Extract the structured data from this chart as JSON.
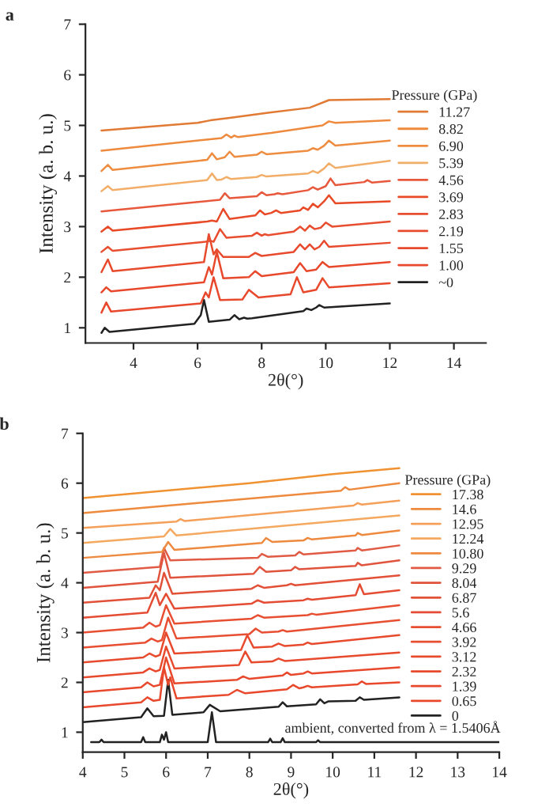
{
  "chart_data": [
    {
      "type": "line",
      "title": "a",
      "xlabel": "2θ(°)",
      "ylabel": "Intensity (a. b. u.)",
      "legend_title": "Pressure (GPa)",
      "legend": "right",
      "grid": false,
      "xlim": [
        2.5,
        15
      ],
      "xticks": [
        4,
        6,
        8,
        10,
        12,
        14
      ],
      "ylim": [
        0.7,
        7
      ],
      "yticks": [
        1,
        2,
        3,
        4,
        5,
        6,
        7
      ],
      "series": [
        {
          "name": "~0",
          "color": "#222222",
          "x": [
            3.0,
            3.1,
            3.25,
            5.9,
            6.1,
            6.2,
            6.35,
            7.0,
            7.15,
            7.3,
            7.45,
            7.55,
            7.7,
            9.3,
            9.4,
            9.55,
            9.7,
            9.8,
            9.95,
            12
          ],
          "values": [
            0.9,
            1.0,
            0.92,
            1.08,
            1.25,
            1.55,
            1.12,
            1.16,
            1.25,
            1.17,
            1.2,
            1.18,
            1.19,
            1.33,
            1.38,
            1.35,
            1.4,
            1.45,
            1.4,
            1.48
          ]
        },
        {
          "name": "1.00",
          "color": "#e8482c",
          "x": [
            3.0,
            3.15,
            3.3,
            6.1,
            6.25,
            6.35,
            6.5,
            6.7,
            7.4,
            7.6,
            7.9,
            8.9,
            9.1,
            9.3,
            9.7,
            9.9,
            10.1,
            12
          ],
          "values": [
            1.3,
            1.5,
            1.32,
            1.48,
            1.7,
            1.6,
            2.0,
            1.55,
            1.56,
            1.75,
            1.6,
            1.66,
            2.0,
            1.7,
            1.75,
            1.98,
            1.8,
            1.88
          ]
        },
        {
          "name": "1.55",
          "color": "#e8482c",
          "x": [
            3.0,
            3.15,
            3.3,
            6.2,
            6.35,
            6.45,
            6.6,
            6.8,
            7.6,
            7.8,
            8.0,
            9.0,
            9.2,
            9.4,
            9.7,
            9.9,
            10.1,
            12
          ],
          "values": [
            1.7,
            1.8,
            1.72,
            1.9,
            2.2,
            2.05,
            2.5,
            1.98,
            2.0,
            2.12,
            2.02,
            2.1,
            2.28,
            2.12,
            2.15,
            2.3,
            2.2,
            2.3
          ]
        },
        {
          "name": "2.19",
          "color": "#e84a2e",
          "x": [
            3.0,
            3.2,
            3.35,
            6.2,
            6.35,
            6.5,
            6.6,
            6.8,
            7.6,
            7.8,
            8.0,
            9.0,
            9.2,
            9.35,
            9.5,
            9.65,
            9.8,
            9.95,
            10.1,
            12
          ],
          "values": [
            2.1,
            2.35,
            2.12,
            2.3,
            2.85,
            2.45,
            2.55,
            2.4,
            2.4,
            2.48,
            2.42,
            2.5,
            2.65,
            2.55,
            2.65,
            2.55,
            2.6,
            2.72,
            2.6,
            2.68
          ]
        },
        {
          "name": "2.83",
          "color": "#e84e30",
          "x": [
            3.0,
            3.2,
            3.35,
            6.25,
            6.4,
            6.5,
            6.7,
            6.9,
            7.7,
            7.85,
            8.0,
            8.1,
            8.2,
            9.0,
            9.2,
            9.35,
            9.5,
            9.65,
            9.85,
            10.0,
            10.2,
            12
          ],
          "values": [
            2.5,
            2.6,
            2.52,
            2.7,
            2.72,
            2.7,
            2.95,
            2.78,
            2.82,
            2.88,
            2.82,
            2.85,
            2.83,
            2.9,
            3.0,
            2.92,
            3.02,
            2.95,
            2.98,
            3.08,
            3.0,
            3.1
          ]
        },
        {
          "name": "3.69",
          "color": "#e84a28",
          "x": [
            3.0,
            3.2,
            3.35,
            6.3,
            6.45,
            6.6,
            6.8,
            7.0,
            7.8,
            7.95,
            8.1,
            8.3,
            8.45,
            8.6,
            9.2,
            9.3,
            9.45,
            9.6,
            9.75,
            9.95,
            10.1,
            10.3,
            12
          ],
          "values": [
            2.9,
            3.0,
            2.92,
            3.1,
            3.12,
            3.1,
            3.35,
            3.15,
            3.22,
            3.32,
            3.24,
            3.27,
            3.32,
            3.27,
            3.32,
            3.38,
            3.33,
            3.45,
            3.38,
            3.5,
            3.62,
            3.46,
            3.5
          ]
        },
        {
          "name": "4.56",
          "color": "#e8583c",
          "x": [
            3.0,
            6.7,
            6.85,
            7.0,
            7.85,
            8.0,
            8.15,
            8.4,
            8.5,
            8.65,
            9.45,
            9.6,
            9.75,
            10.0,
            10.15,
            10.3,
            11.2,
            11.3,
            11.45,
            12
          ],
          "values": [
            3.3,
            3.53,
            3.66,
            3.56,
            3.6,
            3.68,
            3.62,
            3.64,
            3.66,
            3.64,
            3.72,
            3.78,
            3.73,
            3.8,
            3.95,
            3.82,
            3.88,
            3.92,
            3.87,
            3.9
          ]
        },
        {
          "name": "5.39",
          "color": "#f2ae68",
          "x": [
            3.0,
            3.2,
            3.35,
            6.3,
            6.45,
            6.6,
            6.75,
            6.9,
            7.05,
            7.85,
            8.0,
            8.15,
            9.45,
            9.6,
            9.75,
            9.95,
            10.1,
            10.3,
            12
          ],
          "values": [
            3.7,
            3.8,
            3.72,
            3.92,
            4.05,
            3.92,
            3.93,
            3.98,
            3.94,
            3.98,
            4.02,
            3.99,
            4.05,
            4.1,
            4.06,
            4.15,
            4.25,
            4.16,
            4.3
          ]
        },
        {
          "name": "6.90",
          "color": "#ee8c40",
          "x": [
            3.0,
            3.2,
            3.35,
            6.3,
            6.45,
            6.6,
            6.85,
            7.0,
            7.15,
            7.85,
            8.0,
            8.15,
            9.45,
            9.6,
            9.75,
            9.95,
            10.1,
            10.3,
            12
          ],
          "values": [
            4.1,
            4.22,
            4.12,
            4.32,
            4.45,
            4.33,
            4.37,
            4.48,
            4.38,
            4.42,
            4.48,
            4.43,
            4.5,
            4.55,
            4.52,
            4.6,
            4.7,
            4.6,
            4.7
          ]
        },
        {
          "name": "8.82",
          "color": "#ee8a3e",
          "x": [
            3.0,
            6.75,
            6.9,
            7.05,
            7.15,
            7.25,
            8.3,
            9.9,
            10.1,
            10.3,
            12
          ],
          "values": [
            4.5,
            4.75,
            4.82,
            4.76,
            4.8,
            4.77,
            4.85,
            5.0,
            5.08,
            5.05,
            5.1
          ]
        },
        {
          "name": "11.27",
          "color": "#e07a34",
          "x": [
            3.0,
            6.0,
            6.4,
            7.0,
            8.2,
            9.5,
            10.1,
            12
          ],
          "values": [
            4.9,
            5.05,
            5.1,
            5.15,
            5.25,
            5.35,
            5.5,
            5.52
          ]
        }
      ]
    },
    {
      "type": "line",
      "title": "b",
      "xlabel": "2θ(°)",
      "ylabel": "Intensity (a. b. u.)",
      "legend_title": "Pressure (GPa)",
      "legend": "right",
      "grid": false,
      "xlim": [
        4,
        14
      ],
      "xticks": [
        4,
        5,
        6,
        7,
        8,
        9,
        10,
        11,
        12,
        13,
        14
      ],
      "ylim": [
        0.6,
        7
      ],
      "yticks": [
        1,
        2,
        3,
        4,
        5,
        6,
        7
      ],
      "annotations": [
        {
          "text": "ambient, converted from λ = 1.5406Å",
          "x": 8.85,
          "y": 0.93
        }
      ],
      "series": [
        {
          "color": "#222222",
          "x": [
            4.2,
            4.4,
            4.45,
            4.5,
            5.4,
            5.45,
            5.5,
            5.85,
            5.9,
            5.95,
            6.0,
            6.05,
            7.0,
            7.1,
            7.2,
            8.45,
            8.5,
            8.55,
            8.75,
            8.8,
            8.85,
            9.6,
            9.65,
            9.7,
            14.0
          ],
          "values": [
            0.8,
            0.8,
            0.85,
            0.8,
            0.8,
            0.9,
            0.8,
            0.8,
            0.95,
            0.85,
            1.0,
            0.8,
            0.8,
            1.4,
            0.8,
            0.8,
            0.87,
            0.8,
            0.8,
            0.88,
            0.8,
            0.8,
            0.84,
            0.8,
            0.8
          ]
        },
        {
          "name": "0",
          "color": "#222222",
          "x": [
            4.0,
            5.4,
            5.55,
            5.7,
            5.95,
            6.05,
            6.15,
            6.9,
            7.05,
            7.3,
            8.7,
            8.8,
            8.9,
            9.6,
            9.7,
            9.8,
            9.9,
            10.55,
            10.65,
            10.75,
            11.6
          ],
          "values": [
            1.2,
            1.3,
            1.48,
            1.32,
            1.33,
            2.05,
            1.35,
            1.4,
            1.55,
            1.42,
            1.51,
            1.6,
            1.52,
            1.56,
            1.66,
            1.58,
            1.62,
            1.63,
            1.7,
            1.65,
            1.7
          ]
        },
        {
          "name": "0.65",
          "color": "#e8482c",
          "x": [
            4.0,
            5.4,
            5.55,
            5.7,
            5.85,
            5.95,
            6.05,
            6.1,
            6.25,
            7.5,
            7.7,
            7.9,
            8.9,
            9.05,
            9.2,
            9.3,
            9.4,
            9.5,
            10.6,
            10.7,
            10.8,
            11.6
          ],
          "values": [
            1.5,
            1.6,
            1.7,
            1.63,
            1.65,
            2.3,
            1.95,
            2.1,
            1.68,
            1.75,
            1.85,
            1.78,
            1.86,
            1.95,
            1.88,
            1.9,
            1.93,
            1.9,
            1.96,
            2.02,
            1.97,
            2.0
          ]
        },
        {
          "name": "1.39",
          "color": "#e8482c",
          "x": [
            4.0,
            5.4,
            5.55,
            5.7,
            5.85,
            6.0,
            6.2,
            7.7,
            7.85,
            8.0,
            8.8,
            8.9,
            9.0,
            9.3,
            9.4,
            9.5,
            11.6
          ],
          "values": [
            1.8,
            1.9,
            2.0,
            1.92,
            1.95,
            2.5,
            1.98,
            2.05,
            2.12,
            2.07,
            2.14,
            2.2,
            2.15,
            2.18,
            2.22,
            2.18,
            2.3
          ]
        },
        {
          "name": "2.32",
          "color": "#e84a2e",
          "x": [
            4.0,
            5.45,
            5.6,
            5.75,
            5.85,
            6.0,
            6.2,
            7.75,
            7.9,
            8.05,
            8.55,
            8.7,
            8.85,
            11.6
          ],
          "values": [
            2.1,
            2.2,
            2.28,
            2.22,
            2.25,
            2.72,
            2.28,
            2.35,
            2.62,
            2.4,
            2.42,
            2.48,
            2.43,
            2.6
          ]
        },
        {
          "name": "3.12",
          "color": "#e84a2e",
          "x": [
            4.0,
            5.45,
            5.6,
            5.75,
            5.85,
            6.0,
            6.2,
            7.8,
            7.95,
            8.1,
            8.55,
            8.7,
            8.85,
            9.3,
            9.4,
            9.5,
            11.6
          ],
          "values": [
            2.4,
            2.5,
            2.58,
            2.52,
            2.55,
            3.0,
            2.58,
            2.65,
            2.95,
            2.7,
            2.72,
            2.78,
            2.73,
            2.76,
            2.8,
            2.77,
            2.95
          ]
        },
        {
          "name": "3.92",
          "color": "#e84e32",
          "x": [
            4.0,
            5.5,
            5.65,
            5.8,
            5.9,
            6.05,
            6.25,
            8.0,
            8.15,
            8.3,
            8.7,
            8.8,
            8.9,
            11.6
          ],
          "values": [
            2.7,
            2.8,
            2.88,
            2.82,
            2.85,
            3.3,
            2.88,
            2.97,
            3.08,
            3.0,
            3.02,
            3.05,
            3.02,
            3.25
          ]
        },
        {
          "name": "4.66",
          "color": "#e84e32",
          "x": [
            4.0,
            5.45,
            5.6,
            5.75,
            5.85,
            6.0,
            6.2,
            8.05,
            8.2,
            8.35,
            9.4,
            9.5,
            9.6,
            11.6
          ],
          "values": [
            3.0,
            3.1,
            3.2,
            3.12,
            3.15,
            3.55,
            3.18,
            3.28,
            3.35,
            3.3,
            3.35,
            3.38,
            3.36,
            3.55
          ]
        },
        {
          "name": "5.6",
          "color": "#e44c34",
          "x": [
            4.0,
            5.55,
            5.75,
            5.85,
            6.0,
            6.2,
            8.05,
            8.2,
            8.35,
            9.3,
            9.4,
            9.5,
            10.55,
            10.65,
            10.75,
            11.6
          ],
          "values": [
            3.3,
            3.4,
            3.8,
            3.55,
            3.78,
            3.48,
            3.58,
            3.65,
            3.6,
            3.65,
            3.68,
            3.66,
            3.75,
            3.97,
            3.77,
            3.85
          ]
        },
        {
          "name": "6.87",
          "color": "#e25038",
          "x": [
            4.0,
            5.6,
            5.75,
            5.85,
            5.95,
            6.15,
            8.05,
            8.2,
            8.35,
            8.9,
            9.0,
            9.1,
            11.6
          ],
          "values": [
            3.6,
            3.7,
            3.95,
            3.85,
            4.2,
            3.78,
            3.88,
            3.95,
            3.9,
            3.95,
            3.98,
            3.95,
            4.15
          ]
        },
        {
          "name": "8.04",
          "color": "#e0543e",
          "x": [
            4.0,
            5.8,
            5.95,
            6.1,
            8.1,
            8.25,
            8.4,
            9.0,
            9.1,
            9.2,
            10.55,
            10.6,
            10.7,
            11.6
          ],
          "values": [
            3.9,
            4.02,
            4.6,
            4.1,
            4.18,
            4.32,
            4.22,
            4.25,
            4.32,
            4.27,
            4.34,
            4.4,
            4.35,
            4.45
          ]
        },
        {
          "name": "9.29",
          "color": "#e05a44",
          "x": [
            4.0,
            5.85,
            5.95,
            6.1,
            8.2,
            8.3,
            8.45,
            9.1,
            9.2,
            9.3,
            10.55,
            10.6,
            10.7,
            11.6
          ],
          "values": [
            4.2,
            4.32,
            4.7,
            4.45,
            4.5,
            4.58,
            4.52,
            4.55,
            4.62,
            4.57,
            4.65,
            4.7,
            4.65,
            4.75
          ]
        },
        {
          "name": "10.80",
          "color": "#ee8a40",
          "x": [
            4.0,
            5.9,
            6.05,
            6.2,
            8.3,
            8.4,
            8.55,
            9.3,
            9.4,
            9.5,
            10.55,
            10.6,
            10.7,
            11.6
          ],
          "values": [
            4.5,
            4.62,
            4.82,
            4.66,
            4.8,
            4.9,
            4.82,
            4.85,
            4.9,
            4.87,
            4.95,
            5.0,
            4.96,
            5.05
          ]
        },
        {
          "name": "12.24",
          "color": "#f4a860",
          "x": [
            4.0,
            5.95,
            6.1,
            6.25,
            11.6
          ],
          "values": [
            4.8,
            4.93,
            5.08,
            4.95,
            5.35
          ]
        },
        {
          "name": "12.95",
          "color": "#f4a05a",
          "x": [
            4.0,
            6.25,
            6.35,
            6.45,
            10.5,
            10.6,
            10.7,
            11.6
          ],
          "values": [
            5.1,
            5.23,
            5.28,
            5.24,
            5.55,
            5.6,
            5.57,
            5.65
          ]
        },
        {
          "name": "14.6",
          "color": "#ee8a3e",
          "x": [
            4.0,
            10.2,
            10.3,
            10.4,
            11.6
          ],
          "values": [
            5.4,
            5.85,
            5.92,
            5.87,
            6.0
          ]
        },
        {
          "name": "17.38",
          "color": "#f09232",
          "x": [
            4.0,
            8.0,
            10.0,
            11.6
          ],
          "values": [
            5.7,
            6.0,
            6.18,
            6.3
          ]
        }
      ]
    }
  ]
}
